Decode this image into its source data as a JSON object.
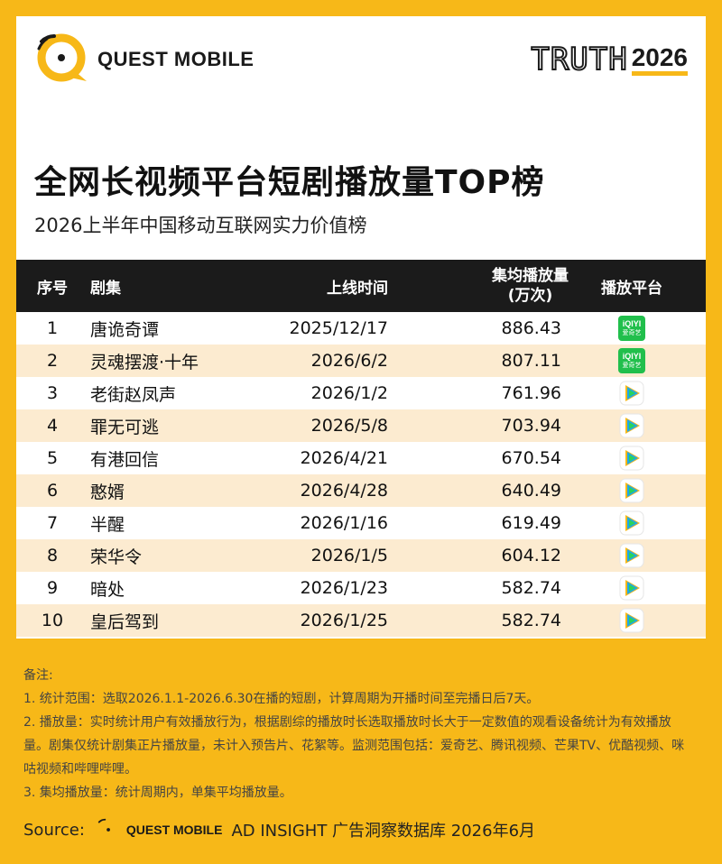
{
  "header": {
    "logo_text": "QUEST MOBILE",
    "truth_word": "TRUTH",
    "truth_year": "2026"
  },
  "title": "全网长视频平台短剧播放量TOP榜",
  "subtitle": "2026上半年中国移动互联网实力价值榜",
  "table": {
    "columns": {
      "rank": "序号",
      "name": "剧集",
      "date": "上线时间",
      "views_line1": "集均播放量",
      "views_line2": "(万次)",
      "platform": "播放平台"
    },
    "rows": [
      {
        "rank": "1",
        "name": "唐诡奇谭",
        "date": "2025/12/17",
        "views": "886.43",
        "platform": "iqiyi"
      },
      {
        "rank": "2",
        "name": "灵魂摆渡·十年",
        "date": "2026/6/2",
        "views": "807.11",
        "platform": "iqiyi"
      },
      {
        "rank": "3",
        "name": "老街赵凤声",
        "date": "2026/1/2",
        "views": "761.96",
        "platform": "tencent"
      },
      {
        "rank": "4",
        "name": "罪无可逃",
        "date": "2026/5/8",
        "views": "703.94",
        "platform": "tencent"
      },
      {
        "rank": "5",
        "name": "有港回信",
        "date": "2026/4/21",
        "views": "670.54",
        "platform": "tencent"
      },
      {
        "rank": "6",
        "name": "憨婿",
        "date": "2026/4/28",
        "views": "640.49",
        "platform": "tencent"
      },
      {
        "rank": "7",
        "name": "半醒",
        "date": "2026/1/16",
        "views": "619.49",
        "platform": "tencent"
      },
      {
        "rank": "8",
        "name": "荣华令",
        "date": "2026/1/5",
        "views": "604.12",
        "platform": "tencent"
      },
      {
        "rank": "9",
        "name": "暗处",
        "date": "2026/1/23",
        "views": "582.74",
        "platform": "tencent"
      },
      {
        "rank": "10",
        "name": "皇后驾到",
        "date": "2026/1/25",
        "views": "582.74",
        "platform": "tencent"
      }
    ],
    "iqiyi_badge_top": "iQIYI",
    "iqiyi_badge_bottom": "爱奇艺"
  },
  "notes": {
    "heading": "备注:",
    "line1": "1. 统计范围：选取2026.1.1-2026.6.30在播的短剧，计算周期为开播时间至完播日后7天。",
    "line2": "2. 播放量：实时统计用户有效播放行为，根据剧综的播放时长选取播放时长大于一定数值的观看设备统计为有效播放量。剧集仅统计剧集正片播放量，未计入预告片、花絮等。监测范围包括：爱奇艺、腾讯视频、芒果TV、优酷视频、咪咕视频和哔哩哔哩。",
    "line3": "3. 集均播放量：统计周期内，单集平均播放量。"
  },
  "source": {
    "label": "Source:",
    "logo_text": "QUEST MOBILE",
    "text": "AD INSIGHT 广告洞察数据库 2026年6月"
  },
  "colors": {
    "brand_yellow": "#F7B818",
    "header_black": "#1B1B1B",
    "row_alt": "#FCEBD0",
    "iqiyi_green": "#21BF4C"
  }
}
